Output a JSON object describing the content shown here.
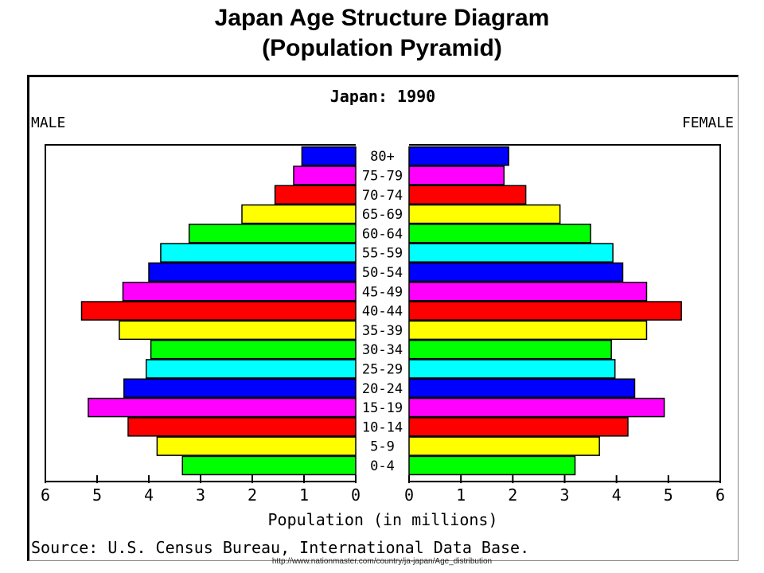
{
  "slide": {
    "title_line1": "Japan Age Structure Diagram",
    "title_line2": "(Population Pyramid)",
    "url": "http://www.nationmaster.com/country/ja-japan/Age_distribution"
  },
  "chart_data": {
    "type": "bar",
    "title": "Japan: 1990",
    "left_label": "MALE",
    "right_label": "FEMALE",
    "xlabel": "Population (in millions)",
    "source": "Source: U.S. Census Bureau, International Data Base.",
    "xlim": [
      0,
      6
    ],
    "ticks": [
      "6",
      "5",
      "4",
      "3",
      "2",
      "1",
      "0",
      "0",
      "1",
      "2",
      "3",
      "4",
      "5",
      "6"
    ],
    "categories": [
      "80+",
      "75-79",
      "70-74",
      "65-69",
      "60-64",
      "55-59",
      "50-54",
      "45-49",
      "40-44",
      "35-39",
      "30-34",
      "25-29",
      "20-24",
      "15-19",
      "10-14",
      "5-9",
      "0-4"
    ],
    "series": [
      {
        "name": "MALE",
        "values": [
          1.04,
          1.2,
          1.56,
          2.2,
          3.22,
          3.77,
          4.0,
          4.5,
          5.3,
          4.57,
          3.96,
          4.05,
          4.48,
          5.17,
          4.4,
          3.84,
          3.35
        ]
      },
      {
        "name": "FEMALE",
        "values": [
          1.92,
          1.83,
          2.25,
          2.91,
          3.5,
          3.93,
          4.12,
          4.58,
          5.25,
          4.58,
          3.9,
          3.97,
          4.35,
          4.92,
          4.22,
          3.67,
          3.2
        ]
      }
    ],
    "bar_colors": [
      "#0000ff",
      "#ff00ff",
      "#ff0000",
      "#ffff00",
      "#00ff00",
      "#00ffff",
      "#0000ff",
      "#ff00ff",
      "#ff0000",
      "#ffff00",
      "#00ff00",
      "#00ffff",
      "#0000ff",
      "#ff00ff",
      "#ff0000",
      "#ffff00",
      "#00ff00"
    ]
  }
}
